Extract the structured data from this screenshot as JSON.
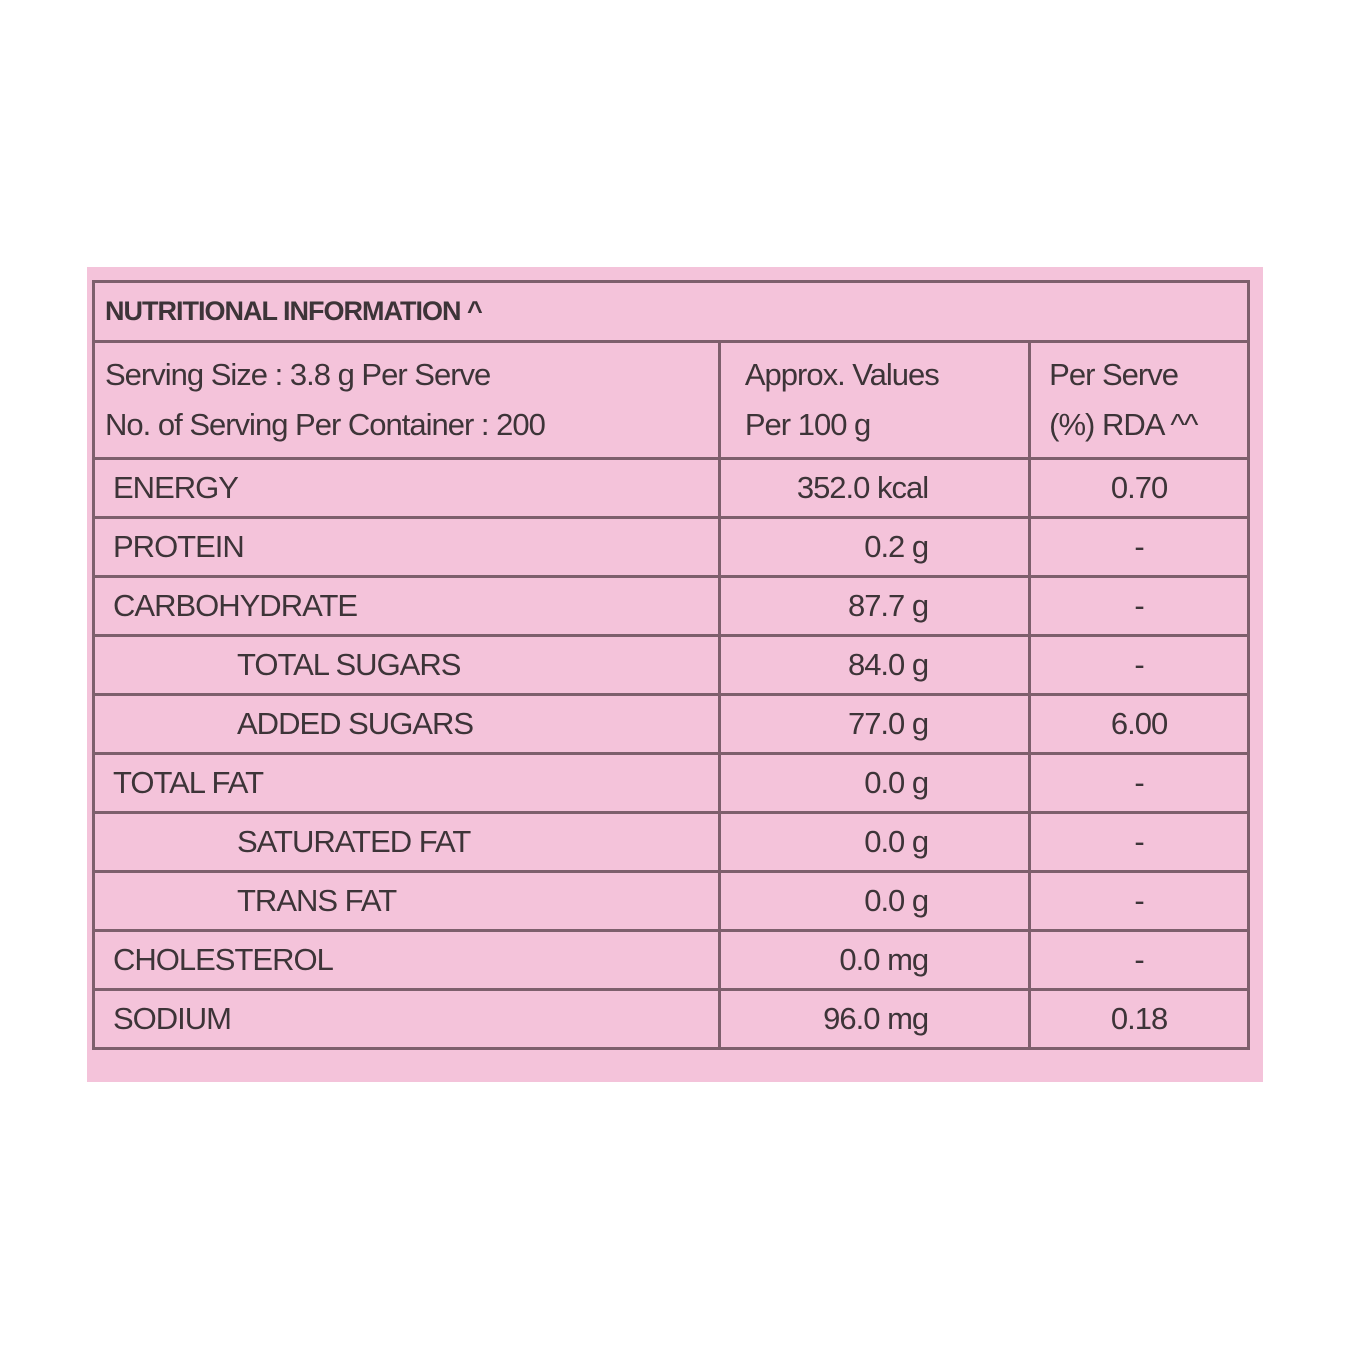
{
  "table": {
    "title": "NUTRITIONAL INFORMATION ^",
    "header": [
      [
        "Serving Size : 3.8 g Per Serve",
        "No. of Serving Per Container : 200"
      ],
      [
        "Approx. Values",
        "Per 100 g"
      ],
      [
        "Per Serve",
        "(%) RDA ^^"
      ]
    ],
    "rows": [
      [
        "ENERGY",
        "352.0 kcal",
        "0.70"
      ],
      [
        "PROTEIN",
        "0.2 g",
        "-"
      ],
      [
        "CARBOHYDRATE",
        "87.7 g",
        "-"
      ],
      [
        "TOTAL SUGARS",
        "84.0 g",
        "-"
      ],
      [
        "ADDED SUGARS",
        "77.0 g",
        "6.00"
      ],
      [
        "TOTAL FAT",
        "0.0 g",
        "-"
      ],
      [
        "SATURATED FAT",
        "0.0 g",
        "-"
      ],
      [
        "TRANS FAT",
        "0.0 g",
        "-"
      ],
      [
        "CHOLESTEROL",
        "0.0 mg",
        "-"
      ],
      [
        "SODIUM",
        "96.0 mg",
        "0.18"
      ]
    ]
  }
}
